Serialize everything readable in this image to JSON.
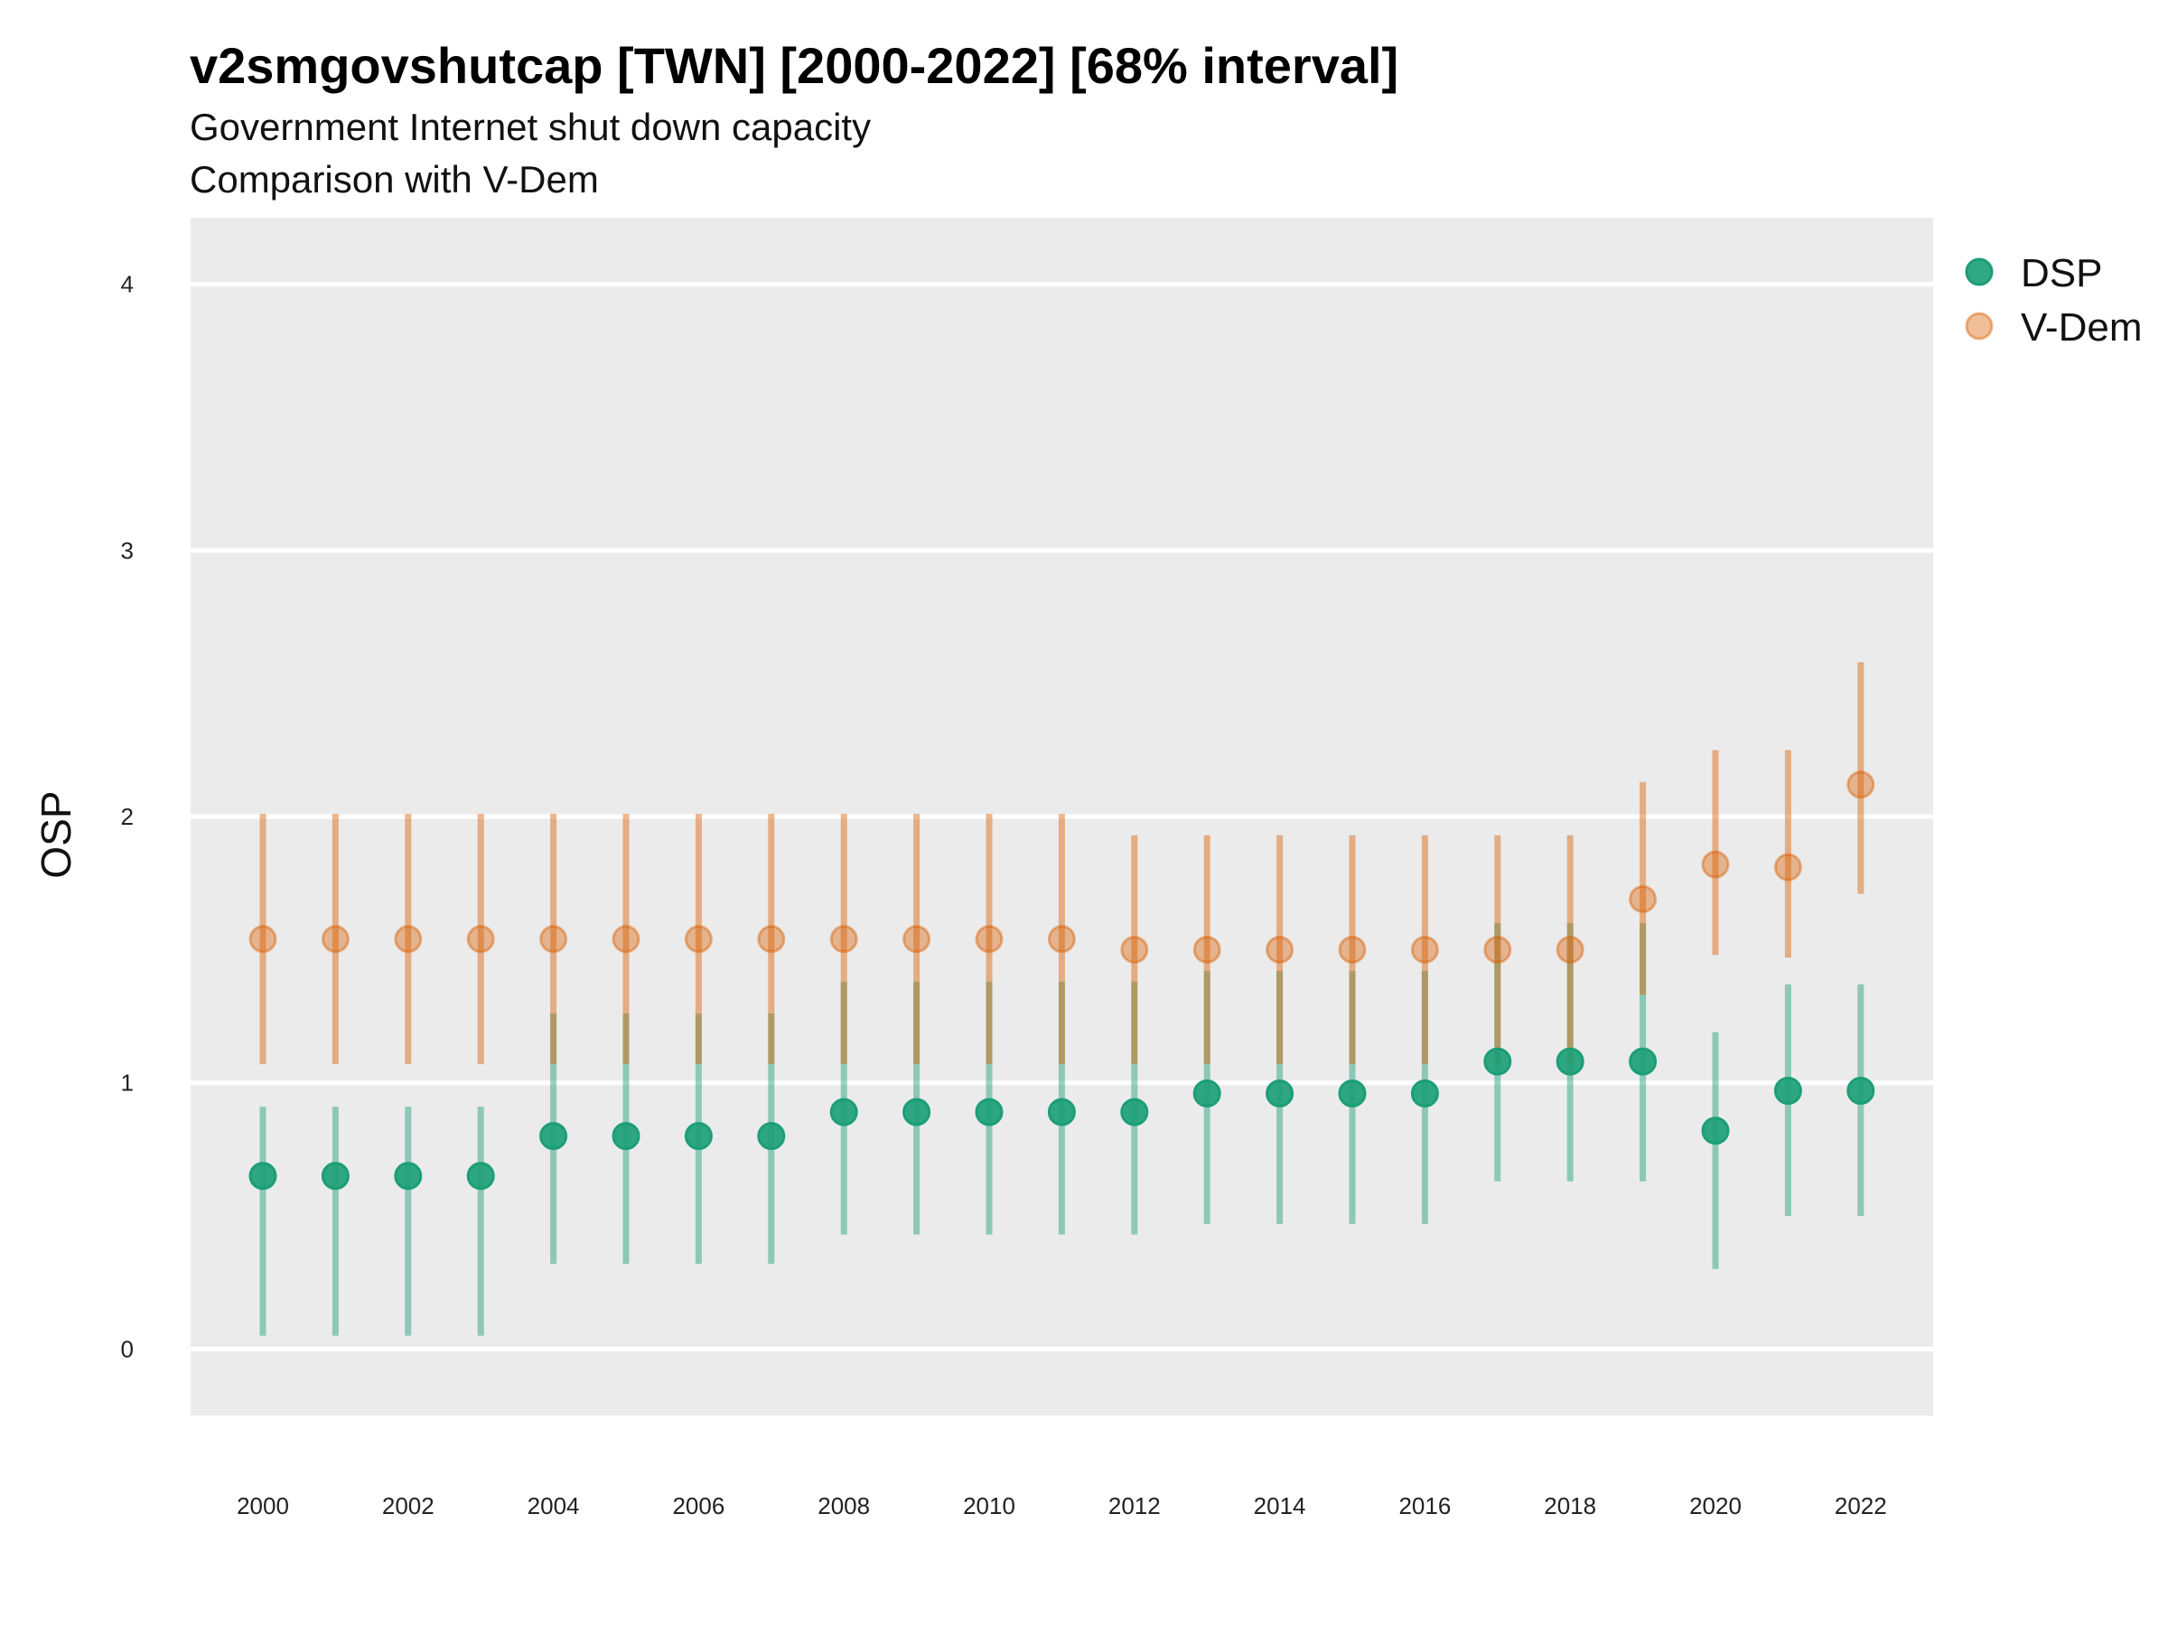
{
  "chart_data": {
    "type": "scatter",
    "title": "v2smgovshutcap [TWN] [2000-2022] [68% interval]",
    "subtitle_line1": "Government Internet shut down capacity",
    "subtitle_line2": "Comparison with V-Dem",
    "ylabel": "OSP",
    "xlabel": "",
    "ylim": [
      -0.25,
      4.25
    ],
    "yticks": [
      "0",
      "1",
      "2",
      "3",
      "4"
    ],
    "xticks": [
      "2000",
      "2002",
      "2004",
      "2006",
      "2008",
      "2010",
      "2012",
      "2014",
      "2016",
      "2018",
      "2020",
      "2022"
    ],
    "x": [
      2000,
      2001,
      2002,
      2003,
      2004,
      2005,
      2006,
      2007,
      2008,
      2009,
      2010,
      2011,
      2012,
      2013,
      2014,
      2015,
      2016,
      2017,
      2018,
      2019,
      2020,
      2021,
      2022
    ],
    "grid": true,
    "legend_position": "right",
    "series": [
      {
        "name": "DSP",
        "color": "#1b9e77",
        "values": [
          0.65,
          0.65,
          0.65,
          0.65,
          0.8,
          0.8,
          0.8,
          0.8,
          0.89,
          0.89,
          0.89,
          0.89,
          0.89,
          0.96,
          0.96,
          0.96,
          0.96,
          1.08,
          1.08,
          1.08,
          0.82,
          0.97,
          0.97
        ],
        "lower": [
          0.05,
          0.05,
          0.05,
          0.05,
          0.32,
          0.32,
          0.32,
          0.32,
          0.43,
          0.43,
          0.43,
          0.43,
          0.43,
          0.47,
          0.47,
          0.47,
          0.47,
          0.63,
          0.63,
          0.63,
          0.3,
          0.5,
          0.5
        ],
        "upper": [
          0.91,
          0.91,
          0.91,
          0.91,
          1.26,
          1.26,
          1.26,
          1.26,
          1.38,
          1.38,
          1.38,
          1.38,
          1.38,
          1.42,
          1.42,
          1.42,
          1.42,
          1.6,
          1.6,
          1.6,
          1.19,
          1.37,
          1.37
        ]
      },
      {
        "name": "V-Dem",
        "color": "#d95f02",
        "values": [
          1.54,
          1.54,
          1.54,
          1.54,
          1.54,
          1.54,
          1.54,
          1.54,
          1.54,
          1.54,
          1.54,
          1.54,
          1.5,
          1.5,
          1.5,
          1.5,
          1.5,
          1.5,
          1.5,
          1.69,
          1.82,
          1.81,
          2.12
        ],
        "lower": [
          1.07,
          1.07,
          1.07,
          1.07,
          1.07,
          1.07,
          1.07,
          1.07,
          1.07,
          1.07,
          1.07,
          1.07,
          1.07,
          1.07,
          1.07,
          1.07,
          1.07,
          1.07,
          1.07,
          1.33,
          1.48,
          1.47,
          1.71
        ],
        "upper": [
          2.01,
          2.01,
          2.01,
          2.01,
          2.01,
          2.01,
          2.01,
          2.01,
          2.01,
          2.01,
          2.01,
          2.01,
          1.93,
          1.93,
          1.93,
          1.93,
          1.93,
          1.93,
          1.93,
          2.13,
          2.25,
          2.25,
          2.58
        ]
      }
    ]
  }
}
